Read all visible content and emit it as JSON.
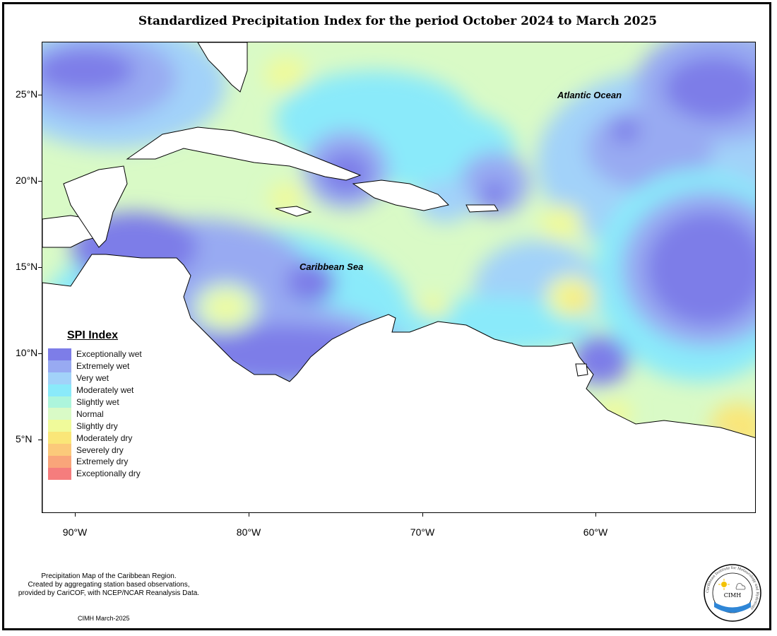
{
  "title": "Standardized Precipitation Index for the period October 2024 to March 2025",
  "map": {
    "lat_labels": [
      "25°N",
      "20°N",
      "15°N",
      "10°N",
      "5°N"
    ],
    "lon_labels": [
      "90°W",
      "80°W",
      "70°W",
      "60°W"
    ],
    "region_labels": {
      "atlantic": "Atlantic Ocean",
      "caribbean": "Caribbean Sea"
    }
  },
  "legend": {
    "title": "SPI Index",
    "items": [
      {
        "label": "Exceptionally wet",
        "color": "#7d7de8"
      },
      {
        "label": "Extremely wet",
        "color": "#98aaf2"
      },
      {
        "label": "Very wet",
        "color": "#a2d2f9"
      },
      {
        "label": "Moderately wet",
        "color": "#8aeafa"
      },
      {
        "label": "Slightly wet",
        "color": "#adf5dc"
      },
      {
        "label": "Normal",
        "color": "#d9fac6"
      },
      {
        "label": "Slightly dry",
        "color": "#f0fa9a"
      },
      {
        "label": "Moderately dry",
        "color": "#fae678"
      },
      {
        "label": "Severely dry",
        "color": "#fbc97a"
      },
      {
        "label": "Extremely dry",
        "color": "#f9a57a"
      },
      {
        "label": "Exceptionally dry",
        "color": "#f57d7d"
      }
    ]
  },
  "footer": {
    "note_lines": [
      "Precipitation Map of the Caribbean Region.",
      "Created by aggregating station based observations,",
      "provided by CariCOF, with NCEP/NCAR Reanalysis Data."
    ],
    "date": "CIMH March-2025"
  },
  "logo": {
    "ring_text": "Caribbean Institute for Meteorology and Hydrology",
    "center_text": "CIMH"
  }
}
